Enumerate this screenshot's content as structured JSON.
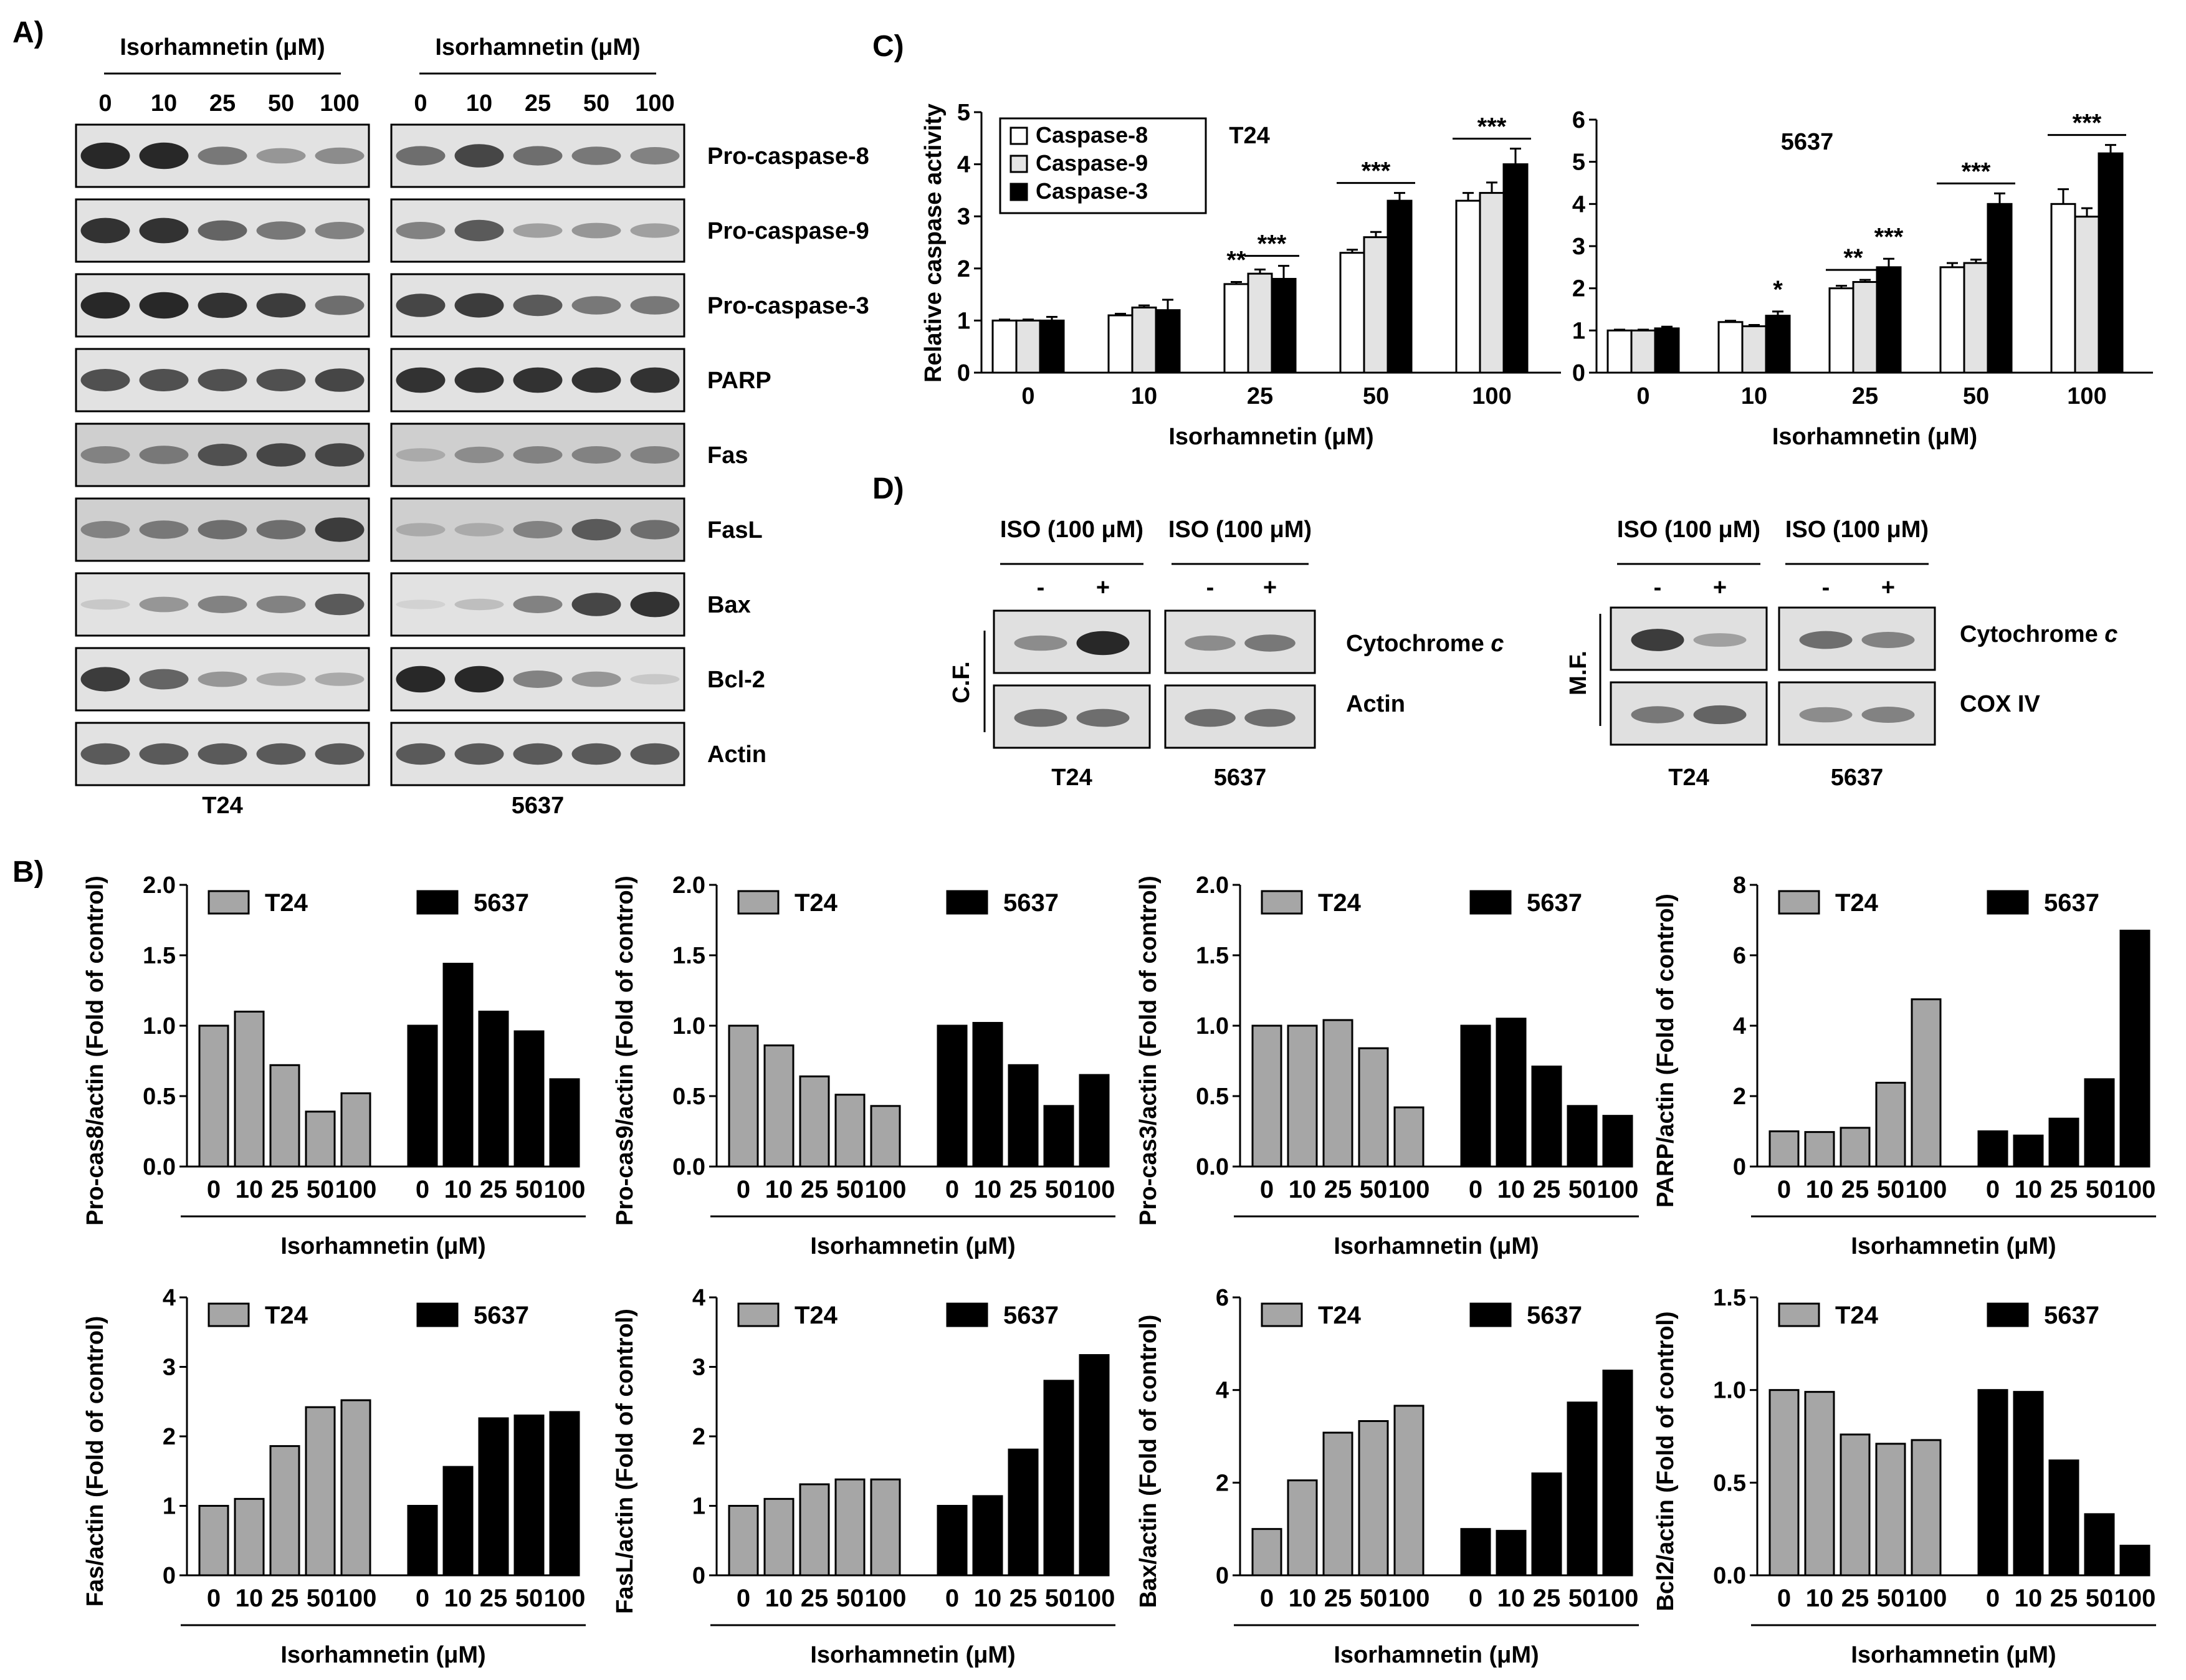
{
  "panel_labels": {
    "a": "A)",
    "b": "B)",
    "c": "C)",
    "d": "D)"
  },
  "western": {
    "title_t24": "Isorhamnetin (μM)",
    "title_5637": "Isorhamnetin (μM)",
    "doses": [
      "0",
      "10",
      "25",
      "50",
      "100"
    ],
    "proteins": [
      "Pro-caspase-8",
      "Pro-caspase-9",
      "Pro-caspase-3",
      "PARP",
      "Fas",
      "FasL",
      "Bax",
      "Bcl-2",
      "Actin"
    ],
    "cell_t24": "T24",
    "cell_5637": "5637"
  },
  "panel_d": {
    "iso_label": "ISO (100 μM)",
    "minus": "-",
    "plus": "+",
    "cf": "C.F.",
    "mf": "M.F.",
    "cyto_prefix": "Cytochrome ",
    "cyto_c": "c",
    "actin": "Actin",
    "cox": "COX IV",
    "cell_t24": "T24",
    "cell_5637": "5637"
  },
  "chart_data": [
    {
      "id": "c-t24",
      "type": "bar",
      "panel": "C",
      "title": "T24",
      "ylabel": "Relative caspase activity",
      "xlabel": "Isorhamnetin (μM)",
      "categories": [
        "0",
        "10",
        "25",
        "50",
        "100"
      ],
      "ylim": [
        0,
        5
      ],
      "yticks": [
        "0",
        "1",
        "2",
        "3",
        "4",
        "5"
      ],
      "series": [
        {
          "name": "Caspase-8",
          "values": [
            1.0,
            1.1,
            1.7,
            2.3,
            3.3
          ],
          "errors": [
            0.02,
            0.03,
            0.04,
            0.06,
            0.15
          ]
        },
        {
          "name": "Caspase-9",
          "values": [
            1.0,
            1.25,
            1.9,
            2.6,
            3.45
          ],
          "errors": [
            0.02,
            0.04,
            0.08,
            0.1,
            0.2
          ]
        },
        {
          "name": "Caspase-3",
          "values": [
            1.0,
            1.2,
            1.8,
            3.3,
            4.0
          ],
          "errors": [
            0.07,
            0.2,
            0.25,
            0.15,
            0.3
          ]
        }
      ],
      "significance": [
        {
          "category": "25",
          "series": 0,
          "label": "**"
        },
        {
          "category": "25",
          "label": "***",
          "bar": [
            1,
            2
          ]
        },
        {
          "category": "50",
          "label": "***",
          "bar": [
            0,
            2
          ]
        },
        {
          "category": "100",
          "label": "***",
          "bar": [
            0,
            2
          ]
        }
      ]
    },
    {
      "id": "c-5637",
      "type": "bar",
      "panel": "C",
      "title": "5637",
      "ylabel": "",
      "xlabel": "Isorhamnetin (μM)",
      "categories": [
        "0",
        "10",
        "25",
        "50",
        "100"
      ],
      "ylim": [
        0,
        6
      ],
      "yticks": [
        "0",
        "1",
        "2",
        "3",
        "4",
        "5",
        "6"
      ],
      "series": [
        {
          "name": "Caspase-8",
          "values": [
            1.0,
            1.2,
            2.0,
            2.5,
            4.0
          ],
          "errors": [
            0.02,
            0.03,
            0.06,
            0.1,
            0.35
          ]
        },
        {
          "name": "Caspase-9",
          "values": [
            1.0,
            1.1,
            2.15,
            2.6,
            3.7
          ],
          "errors": [
            0.02,
            0.03,
            0.05,
            0.08,
            0.2
          ]
        },
        {
          "name": "Caspase-3",
          "values": [
            1.05,
            1.35,
            2.5,
            4.0,
            5.2
          ],
          "errors": [
            0.04,
            0.1,
            0.2,
            0.25,
            0.2
          ]
        }
      ],
      "significance": [
        {
          "category": "10",
          "series": 2,
          "label": "*"
        },
        {
          "category": "25",
          "label": "**",
          "bar": [
            0,
            1
          ]
        },
        {
          "category": "25",
          "series": 2,
          "label": "***"
        },
        {
          "category": "50",
          "label": "***",
          "bar": [
            0,
            2
          ]
        },
        {
          "category": "100",
          "label": "***",
          "bar": [
            0,
            2
          ]
        }
      ]
    },
    {
      "id": "b1",
      "type": "bar",
      "panel": "B",
      "ylabel": "Pro-cas8/actin (Fold of control)",
      "xlabel": "Isorhamnetin (μM)",
      "categories": [
        "0",
        "10",
        "25",
        "50",
        "100"
      ],
      "ylim": [
        0,
        2.0
      ],
      "yticks": [
        "0.0",
        "0.5",
        "1.0",
        "1.5",
        "2.0"
      ],
      "series": [
        {
          "name": "T24",
          "values": [
            1.0,
            1.1,
            0.72,
            0.39,
            0.52
          ]
        },
        {
          "name": "5637",
          "values": [
            1.0,
            1.44,
            1.1,
            0.96,
            0.62
          ]
        }
      ]
    },
    {
      "id": "b2",
      "type": "bar",
      "panel": "B",
      "ylabel": "Pro-cas9/actin (Fold of control)",
      "xlabel": "Isorhamnetin (μM)",
      "categories": [
        "0",
        "10",
        "25",
        "50",
        "100"
      ],
      "ylim": [
        0,
        2.0
      ],
      "yticks": [
        "0.0",
        "0.5",
        "1.0",
        "1.5",
        "2.0"
      ],
      "series": [
        {
          "name": "T24",
          "values": [
            1.0,
            0.86,
            0.64,
            0.51,
            0.43
          ]
        },
        {
          "name": "5637",
          "values": [
            1.0,
            1.02,
            0.72,
            0.43,
            0.65
          ]
        }
      ]
    },
    {
      "id": "b3",
      "type": "bar",
      "panel": "B",
      "ylabel": "Pro-cas3/actin (Fold of control)",
      "xlabel": "Isorhamnetin (μM)",
      "categories": [
        "0",
        "10",
        "25",
        "50",
        "100"
      ],
      "ylim": [
        0,
        2.0
      ],
      "yticks": [
        "0.0",
        "0.5",
        "1.0",
        "1.5",
        "2.0"
      ],
      "series": [
        {
          "name": "T24",
          "values": [
            1.0,
            1.0,
            1.04,
            0.84,
            0.42
          ]
        },
        {
          "name": "5637",
          "values": [
            1.0,
            1.05,
            0.71,
            0.43,
            0.36
          ]
        }
      ]
    },
    {
      "id": "b4",
      "type": "bar",
      "panel": "B",
      "ylabel": "PARP/actin (Fold of control)",
      "xlabel": "Isorhamnetin (μM)",
      "categories": [
        "0",
        "10",
        "25",
        "50",
        "100"
      ],
      "ylim": [
        0,
        8
      ],
      "yticks": [
        "0",
        "2",
        "4",
        "6",
        "8"
      ],
      "series": [
        {
          "name": "T24",
          "values": [
            1.0,
            0.98,
            1.1,
            2.38,
            4.75
          ]
        },
        {
          "name": "5637",
          "values": [
            1.0,
            0.88,
            1.36,
            2.48,
            6.7
          ]
        }
      ]
    },
    {
      "id": "b5",
      "type": "bar",
      "panel": "B",
      "ylabel": "Fas/actin (Fold of control)",
      "xlabel": "Isorhamnetin (μM)",
      "categories": [
        "0",
        "10",
        "25",
        "50",
        "100"
      ],
      "ylim": [
        0,
        4
      ],
      "yticks": [
        "0",
        "1",
        "2",
        "3",
        "4"
      ],
      "series": [
        {
          "name": "T24",
          "values": [
            1.0,
            1.1,
            1.86,
            2.42,
            2.52
          ]
        },
        {
          "name": "5637",
          "values": [
            1.0,
            1.56,
            2.26,
            2.3,
            2.35
          ]
        }
      ]
    },
    {
      "id": "b6",
      "type": "bar",
      "panel": "B",
      "ylabel": "FasL/actin (Fold of control)",
      "xlabel": "Isorhamnetin (μM)",
      "categories": [
        "0",
        "10",
        "25",
        "50",
        "100"
      ],
      "ylim": [
        0,
        4
      ],
      "yticks": [
        "0",
        "1",
        "2",
        "3",
        "4"
      ],
      "series": [
        {
          "name": "T24",
          "values": [
            1.0,
            1.1,
            1.31,
            1.38,
            1.38
          ]
        },
        {
          "name": "5637",
          "values": [
            1.0,
            1.14,
            1.81,
            2.8,
            3.17
          ]
        }
      ]
    },
    {
      "id": "b7",
      "type": "bar",
      "panel": "B",
      "ylabel": "Bax/actin (Fold of control)",
      "xlabel": "Isorhamnetin (μM)",
      "categories": [
        "0",
        "10",
        "25",
        "50",
        "100"
      ],
      "ylim": [
        0,
        6
      ],
      "yticks": [
        "0",
        "2",
        "4",
        "6"
      ],
      "series": [
        {
          "name": "T24",
          "values": [
            1.0,
            2.05,
            3.08,
            3.33,
            3.66
          ]
        },
        {
          "name": "5637",
          "values": [
            1.0,
            0.96,
            2.2,
            3.73,
            4.42
          ]
        }
      ]
    },
    {
      "id": "b8",
      "type": "bar",
      "panel": "B",
      "ylabel": "Bcl2/actin (Fold of control)",
      "xlabel": "Isorhamnetin (μM)",
      "categories": [
        "0",
        "10",
        "25",
        "50",
        "100"
      ],
      "ylim": [
        0,
        1.5
      ],
      "yticks": [
        "0.0",
        "0.5",
        "1.0",
        "1.5"
      ],
      "series": [
        {
          "name": "T24",
          "values": [
            1.0,
            0.99,
            0.76,
            0.71,
            0.73
          ]
        },
        {
          "name": "5637",
          "values": [
            1.0,
            0.99,
            0.62,
            0.33,
            0.16
          ]
        }
      ]
    }
  ]
}
